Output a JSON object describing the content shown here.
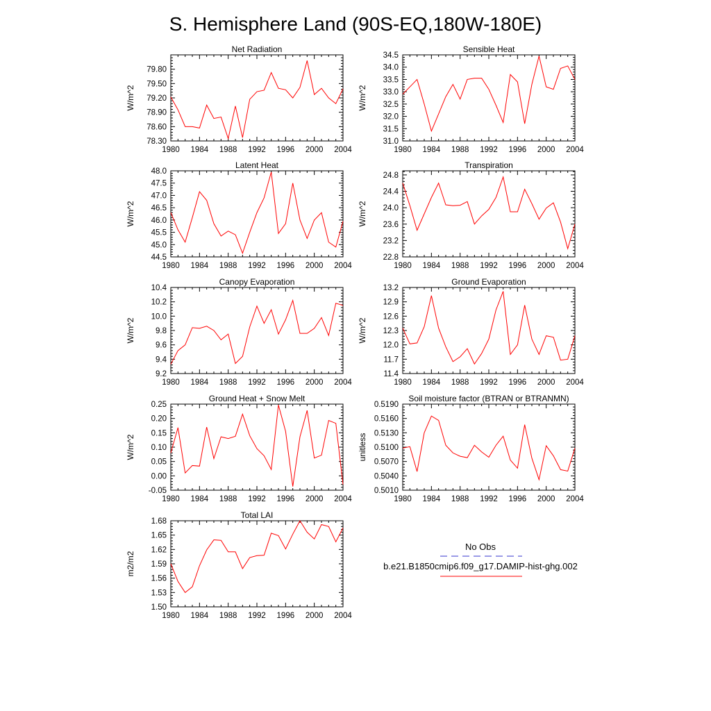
{
  "figure_title": "S. Hemisphere Land (90S-EQ,180W-180E)",
  "legend": {
    "entries": [
      {
        "label": "No Obs",
        "color": "#3333cc",
        "dash": "dashed"
      },
      {
        "label": "b.e21.B1850cmip6.f09_g17.DAMIP-hist-ghg.002",
        "color": "#ff0000",
        "dash": "solid"
      }
    ]
  },
  "chart_data": [
    {
      "type": "line",
      "title": "Net Radiation",
      "ylabel": "W/m^2",
      "x": [
        1980,
        1981,
        1982,
        1983,
        1984,
        1985,
        1986,
        1987,
        1988,
        1989,
        1990,
        1991,
        1992,
        1993,
        1994,
        1995,
        1996,
        1997,
        1998,
        1999,
        2000,
        2001,
        2002,
        2003,
        2004
      ],
      "xlim": [
        1980,
        2004
      ],
      "xticks": [
        1980,
        1984,
        1988,
        1992,
        1996,
        2000,
        2004
      ],
      "ylim": [
        78.3,
        80.1
      ],
      "yticks": [
        "78.30",
        "78.60",
        "78.90",
        "79.20",
        "79.50",
        "79.80"
      ],
      "series": [
        {
          "color": "#ff0000",
          "values": [
            79.22,
            78.95,
            78.6,
            78.6,
            78.57,
            79.05,
            78.77,
            78.8,
            78.35,
            79.03,
            78.37,
            79.17,
            79.33,
            79.36,
            79.73,
            79.4,
            79.37,
            79.2,
            79.42,
            79.98,
            79.27,
            79.4,
            79.2,
            79.08,
            79.39
          ]
        }
      ]
    },
    {
      "type": "line",
      "title": "Sensible Heat",
      "ylabel": "W/m^2",
      "x": [
        1980,
        1981,
        1982,
        1983,
        1984,
        1985,
        1986,
        1987,
        1988,
        1989,
        1990,
        1991,
        1992,
        1993,
        1994,
        1995,
        1996,
        1997,
        1998,
        1999,
        2000,
        2001,
        2002,
        2003,
        2004
      ],
      "xlim": [
        1980,
        2004
      ],
      "xticks": [
        1980,
        1984,
        1988,
        1992,
        1996,
        2000,
        2004
      ],
      "ylim": [
        31.0,
        34.5
      ],
      "yticks": [
        "31.0",
        "31.5",
        "32.0",
        "32.5",
        "33.0",
        "33.5",
        "34.0",
        "34.5"
      ],
      "series": [
        {
          "color": "#ff0000",
          "values": [
            32.9,
            33.2,
            33.5,
            32.5,
            31.4,
            32.1,
            32.8,
            33.3,
            32.7,
            33.5,
            33.55,
            33.55,
            33.1,
            32.45,
            31.75,
            33.7,
            33.4,
            31.7,
            33.3,
            34.45,
            33.2,
            33.1,
            33.95,
            34.05,
            33.5
          ]
        }
      ]
    },
    {
      "type": "line",
      "title": "Latent Heat",
      "ylabel": "W/m^2",
      "x": [
        1980,
        1981,
        1982,
        1983,
        1984,
        1985,
        1986,
        1987,
        1988,
        1989,
        1990,
        1991,
        1992,
        1993,
        1994,
        1995,
        1996,
        1997,
        1998,
        1999,
        2000,
        2001,
        2002,
        2003,
        2004
      ],
      "xlim": [
        1980,
        2004
      ],
      "xticks": [
        1980,
        1984,
        1988,
        1992,
        1996,
        2000,
        2004
      ],
      "ylim": [
        44.5,
        48.0
      ],
      "yticks": [
        "44.5",
        "45.0",
        "45.5",
        "46.0",
        "46.5",
        "47.0",
        "47.5",
        "48.0"
      ],
      "series": [
        {
          "color": "#ff0000",
          "values": [
            46.3,
            45.6,
            45.1,
            46.1,
            47.15,
            46.8,
            45.85,
            45.35,
            45.55,
            45.4,
            44.65,
            45.5,
            46.3,
            46.9,
            47.95,
            45.45,
            45.85,
            47.5,
            46.0,
            45.25,
            46.0,
            46.3,
            45.1,
            44.9,
            45.95
          ]
        }
      ]
    },
    {
      "type": "line",
      "title": "Transpiration",
      "ylabel": "W/m^2",
      "x": [
        1980,
        1981,
        1982,
        1983,
        1984,
        1985,
        1986,
        1987,
        1988,
        1989,
        1990,
        1991,
        1992,
        1993,
        1994,
        1995,
        1996,
        1997,
        1998,
        1999,
        2000,
        2001,
        2002,
        2003,
        2004
      ],
      "xlim": [
        1980,
        2004
      ],
      "xticks": [
        1980,
        1984,
        1988,
        1992,
        1996,
        2000,
        2004
      ],
      "ylim": [
        22.8,
        24.9
      ],
      "yticks": [
        "22.8",
        "23.2",
        "23.6",
        "24.0",
        "24.4",
        "24.8"
      ],
      "series": [
        {
          "color": "#ff0000",
          "values": [
            24.6,
            24.05,
            23.45,
            23.85,
            24.25,
            24.6,
            24.07,
            24.05,
            24.06,
            24.15,
            23.6,
            23.8,
            23.96,
            24.25,
            24.75,
            23.9,
            23.9,
            24.45,
            24.1,
            23.72,
            23.99,
            24.12,
            23.65,
            23.0,
            23.6
          ]
        }
      ]
    },
    {
      "type": "line",
      "title": "Canopy Evaporation",
      "ylabel": "W/m^2",
      "x": [
        1980,
        1981,
        1982,
        1983,
        1984,
        1985,
        1986,
        1987,
        1988,
        1989,
        1990,
        1991,
        1992,
        1993,
        1994,
        1995,
        1996,
        1997,
        1998,
        1999,
        2000,
        2001,
        2002,
        2003,
        2004
      ],
      "xlim": [
        1980,
        2004
      ],
      "xticks": [
        1980,
        1984,
        1988,
        1992,
        1996,
        2000,
        2004
      ],
      "ylim": [
        9.2,
        10.4
      ],
      "yticks": [
        "9.2",
        "9.4",
        "9.6",
        "9.8",
        "10.0",
        "10.2",
        "10.4"
      ],
      "series": [
        {
          "color": "#ff0000",
          "values": [
            9.33,
            9.52,
            9.6,
            9.84,
            9.83,
            9.86,
            9.8,
            9.67,
            9.75,
            9.34,
            9.44,
            9.85,
            10.14,
            9.9,
            10.09,
            9.75,
            9.95,
            10.22,
            9.76,
            9.76,
            9.83,
            9.98,
            9.73,
            10.18,
            10.15
          ]
        }
      ]
    },
    {
      "type": "line",
      "title": "Ground Evaporation",
      "ylabel": "W/m^2",
      "x": [
        1980,
        1981,
        1982,
        1983,
        1984,
        1985,
        1986,
        1987,
        1988,
        1989,
        1990,
        1991,
        1992,
        1993,
        1994,
        1995,
        1996,
        1997,
        1998,
        1999,
        2000,
        2001,
        2002,
        2003,
        2004
      ],
      "xlim": [
        1980,
        2004
      ],
      "xticks": [
        1980,
        1984,
        1988,
        1992,
        1996,
        2000,
        2004
      ],
      "ylim": [
        11.4,
        13.2
      ],
      "yticks": [
        "11.4",
        "11.7",
        "12.0",
        "12.3",
        "12.6",
        "12.9",
        "13.2"
      ],
      "series": [
        {
          "color": "#ff0000",
          "values": [
            12.35,
            12.02,
            12.04,
            12.38,
            13.03,
            12.35,
            11.96,
            11.65,
            11.75,
            11.92,
            11.6,
            11.82,
            12.12,
            12.73,
            13.12,
            11.8,
            12.0,
            12.83,
            12.12,
            11.8,
            12.19,
            12.16,
            11.68,
            11.7,
            12.19
          ]
        }
      ]
    },
    {
      "type": "line",
      "title": "Ground Heat + Snow Melt",
      "ylabel": "W/m^2",
      "x": [
        1980,
        1981,
        1982,
        1983,
        1984,
        1985,
        1986,
        1987,
        1988,
        1989,
        1990,
        1991,
        1992,
        1993,
        1994,
        1995,
        1996,
        1997,
        1998,
        1999,
        2000,
        2001,
        2002,
        2003,
        2004
      ],
      "xlim": [
        1980,
        2004
      ],
      "xticks": [
        1980,
        1984,
        1988,
        1992,
        1996,
        2000,
        2004
      ],
      "ylim": [
        -0.05,
        0.25
      ],
      "yticks": [
        "-0.05",
        "0.00",
        "0.05",
        "0.10",
        "0.15",
        "0.20",
        "0.25"
      ],
      "series": [
        {
          "color": "#ff0000",
          "values": [
            0.08,
            0.168,
            0.01,
            0.036,
            0.034,
            0.17,
            0.06,
            0.136,
            0.13,
            0.138,
            0.215,
            0.14,
            0.095,
            0.07,
            0.022,
            0.247,
            0.155,
            -0.037,
            0.136,
            0.228,
            0.062,
            0.072,
            0.193,
            0.183,
            -0.03
          ]
        }
      ]
    },
    {
      "type": "line",
      "title": "Soil moisture factor (BTRAN or BTRANMN)",
      "ylabel": "unitless",
      "x": [
        1980,
        1981,
        1982,
        1983,
        1984,
        1985,
        1986,
        1987,
        1988,
        1989,
        1990,
        1991,
        1992,
        1993,
        1994,
        1995,
        1996,
        1997,
        1998,
        1999,
        2000,
        2001,
        2002,
        2003,
        2004
      ],
      "xlim": [
        1980,
        2004
      ],
      "xticks": [
        1980,
        1984,
        1988,
        1992,
        1996,
        2000,
        2004
      ],
      "ylim": [
        0.501,
        0.519
      ],
      "yticks": [
        "0.5010",
        "0.5040",
        "0.5070",
        "0.5100",
        "0.5130",
        "0.5160",
        "0.5190"
      ],
      "series": [
        {
          "color": "#ff0000",
          "values": [
            0.5098,
            0.5101,
            0.5049,
            0.513,
            0.5165,
            0.5156,
            0.5104,
            0.5088,
            0.5081,
            0.5078,
            0.5104,
            0.509,
            0.5079,
            0.5104,
            0.5123,
            0.5073,
            0.5056,
            0.5147,
            0.5077,
            0.5032,
            0.5103,
            0.5082,
            0.5053,
            0.505,
            0.5098
          ]
        }
      ]
    },
    {
      "type": "line",
      "title": "Total LAI",
      "ylabel": "m2/m2",
      "x": [
        1980,
        1981,
        1982,
        1983,
        1984,
        1985,
        1986,
        1987,
        1988,
        1989,
        1990,
        1991,
        1992,
        1993,
        1994,
        1995,
        1996,
        1997,
        1998,
        1999,
        2000,
        2001,
        2002,
        2003,
        2004
      ],
      "xlim": [
        1980,
        2004
      ],
      "xticks": [
        1980,
        1984,
        1988,
        1992,
        1996,
        2000,
        2004
      ],
      "ylim": [
        1.5,
        1.68
      ],
      "yticks": [
        "1.50",
        "1.53",
        "1.56",
        "1.59",
        "1.62",
        "1.65",
        "1.68"
      ],
      "series": [
        {
          "color": "#ff0000",
          "values": [
            1.59,
            1.553,
            1.53,
            1.542,
            1.586,
            1.619,
            1.64,
            1.639,
            1.615,
            1.615,
            1.58,
            1.603,
            1.607,
            1.608,
            1.654,
            1.649,
            1.621,
            1.652,
            1.68,
            1.656,
            1.642,
            1.672,
            1.668,
            1.636,
            1.665
          ]
        }
      ]
    }
  ]
}
